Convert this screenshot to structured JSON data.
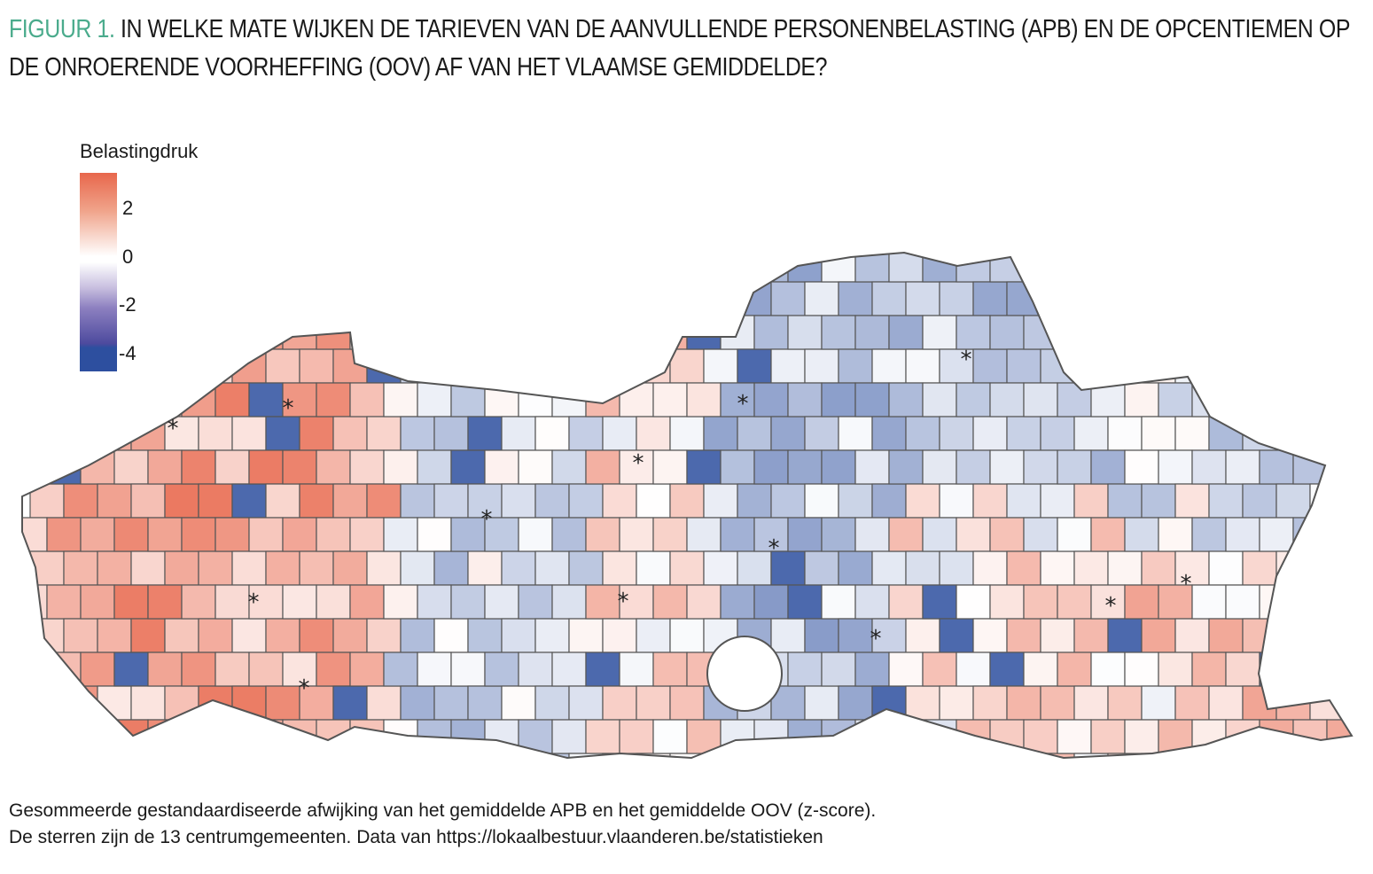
{
  "title": {
    "figure_label": "FIGUUR 1.",
    "text": "IN WELKE MATE WIJKEN DE TARIEVEN VAN DE AANVULLENDE PERSONENBELASTING (APB) EN DE OPCENTIEMEN OP DE ONROERENDE VOORHEFFING (OOV) AF VAN HET VLAAMSE GEMIDDELDE?"
  },
  "legend": {
    "title": "Belastingdruk",
    "ticks": [
      "2",
      "0",
      "-2",
      "-4"
    ],
    "range": [
      -4.7,
      3.5
    ],
    "colors": {
      "high": "#e8674c",
      "mid": "#ffffff",
      "low": "#2d4f9f"
    }
  },
  "caption": {
    "line1": "Gesommeerde gestandaardiseerde afwijking van het gemiddelde APB en het gemiddelde OOV (z-score).",
    "line2": "De sterren zijn de 13 centrumgemeenten. Data van https://lokaalbestuur.vlaanderen.be/statistieken"
  },
  "map": {
    "region": "Vlaanderen",
    "star_count": 13,
    "border_color": "#555555"
  }
}
